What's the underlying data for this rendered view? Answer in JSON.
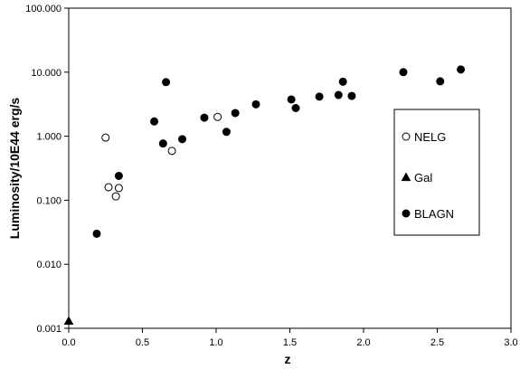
{
  "chart_data": {
    "type": "scatter",
    "xlabel": "z",
    "ylabel": "Luminosity/10E44 erg/s",
    "xlim": [
      0,
      3
    ],
    "ylim": [
      0.001,
      100
    ],
    "y_scale": "log",
    "x_ticks": [
      "0.0",
      "0.5",
      "1.0",
      "1.5",
      "2.0",
      "2.5",
      "3.0"
    ],
    "y_ticks": [
      "0.001",
      "0.010",
      "0.100",
      "1.000",
      "10.000",
      "100.000"
    ],
    "grid": false,
    "legend_position": "right",
    "series": [
      {
        "name": "NELG",
        "marker": "open-circle",
        "points": [
          [
            0.25,
            0.95
          ],
          [
            0.27,
            0.16
          ],
          [
            0.32,
            0.115
          ],
          [
            0.34,
            0.155
          ],
          [
            0.7,
            0.59
          ],
          [
            1.01,
            2.0
          ]
        ]
      },
      {
        "name": "Gal",
        "marker": "filled-triangle",
        "points": [
          [
            0.0,
            0.0013
          ]
        ]
      },
      {
        "name": "BLAGN",
        "marker": "filled-circle",
        "points": [
          [
            0.19,
            0.03
          ],
          [
            0.34,
            0.24
          ],
          [
            0.58,
            1.7
          ],
          [
            0.64,
            0.77
          ],
          [
            0.66,
            7.0
          ],
          [
            0.77,
            0.9
          ],
          [
            0.92,
            1.95
          ],
          [
            1.07,
            1.17
          ],
          [
            1.13,
            2.3
          ],
          [
            1.27,
            3.15
          ],
          [
            1.51,
            3.75
          ],
          [
            1.54,
            2.75
          ],
          [
            1.7,
            4.15
          ],
          [
            1.83,
            4.4
          ],
          [
            1.86,
            7.1
          ],
          [
            1.92,
            4.25
          ],
          [
            2.27,
            10.0
          ],
          [
            2.52,
            7.2
          ],
          [
            2.66,
            11.0
          ]
        ]
      }
    ]
  }
}
